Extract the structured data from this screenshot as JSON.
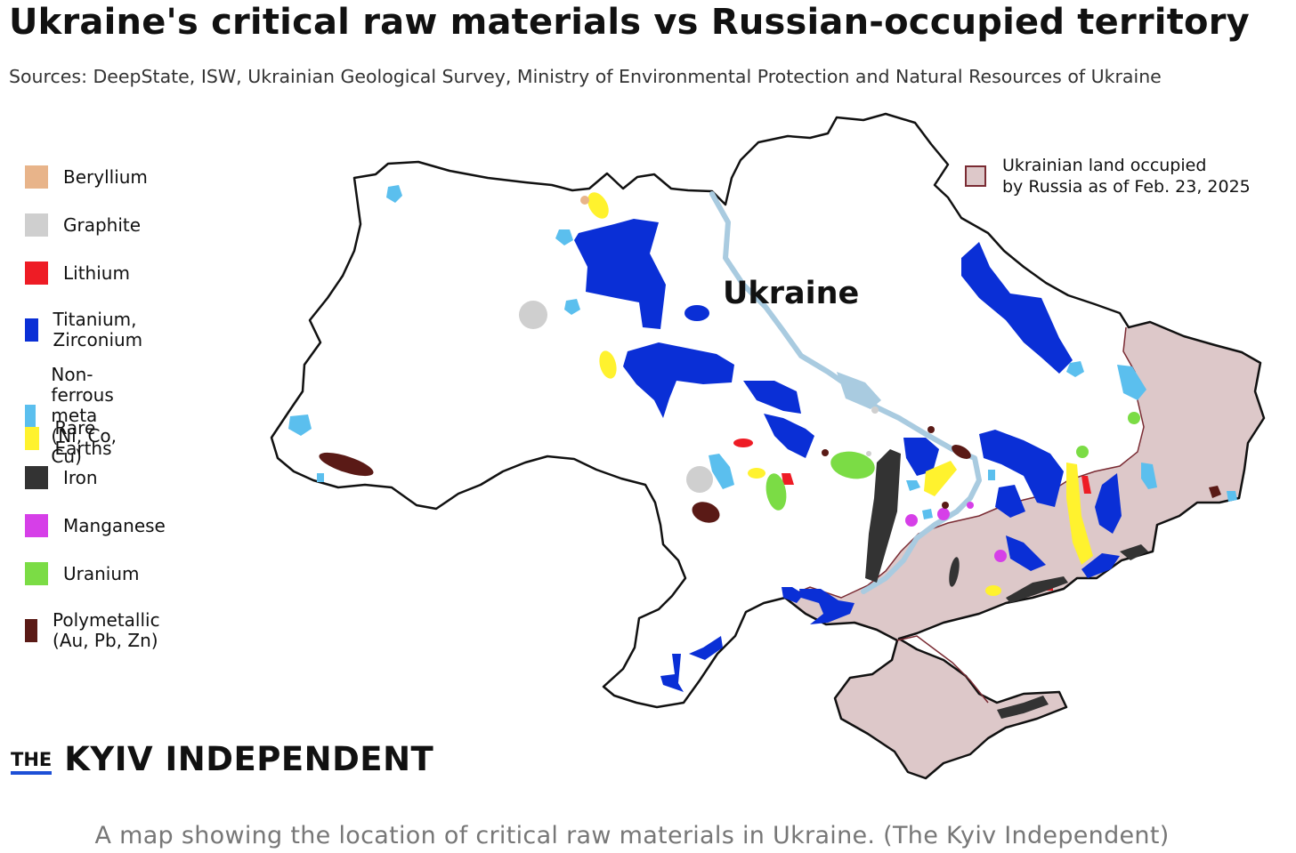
{
  "title": "Ukraine's critical raw materials vs Russian-occupied territory",
  "sources": "Sources: DeepState, ISW, Ukrainian Geological Survey, Ministry of Environmental Protection and Natural Resources of Ukraine",
  "legend": [
    {
      "label": "Beryllium",
      "color": "#e8b48a"
    },
    {
      "label": "Graphite",
      "color": "#cfcfcf"
    },
    {
      "label": "Lithium",
      "color": "#ee1c25"
    },
    {
      "label": "Titanium, Zirconium",
      "color": "#0a2fd6"
    },
    {
      "label": "Non-ferrous meta\n(Ni, Co, Cu)",
      "color": "#5bbfee"
    },
    {
      "label": "Rare Earths",
      "color": "#fff22e"
    },
    {
      "label": "Iron",
      "color": "#333333"
    },
    {
      "label": "Manganese",
      "color": "#d63fe8"
    },
    {
      "label": "Uranium",
      "color": "#7bdc45"
    },
    {
      "label": "Polymetallic (Au, Pb, Zn)",
      "color": "#5a1a16"
    }
  ],
  "occupied_legend": {
    "label": "Ukrainian land occupied\nby Russia as of Feb. 23, 2025",
    "fill": "#ddc8c9",
    "border": "#7a2b33"
  },
  "map_label": "Ukraine",
  "brand": {
    "prefix": "THE",
    "name": "KYIV INDEPENDENT"
  },
  "caption": "A map showing the location of critical raw materials in Ukraine. (The Kyiv Independent)"
}
